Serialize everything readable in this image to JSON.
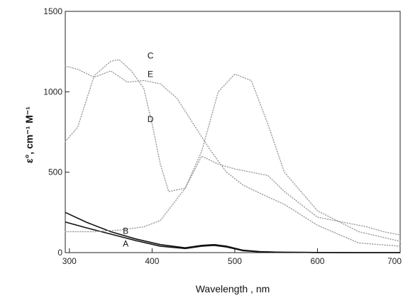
{
  "chart_data": {
    "type": "line",
    "title": "",
    "xlabel": "Wavelength , nm",
    "ylabel": "ε°, cm⁻¹ M⁻¹",
    "xlim": [
      295,
      700
    ],
    "ylim": [
      0,
      1500
    ],
    "xticks": [
      300,
      400,
      500,
      600,
      700
    ],
    "yticks": [
      0,
      500,
      1000,
      1500
    ],
    "grid": false,
    "legend": "none",
    "series": [
      {
        "name": "A",
        "style": "solid",
        "label_at": [
          368,
          55
        ],
        "x": [
          295,
          320,
          350,
          380,
          410,
          440,
          460,
          475,
          490,
          510,
          530,
          560,
          600,
          650,
          700
        ],
        "y": [
          190,
          155,
          115,
          75,
          40,
          25,
          40,
          45,
          35,
          12,
          5,
          2,
          1,
          0,
          0
        ]
      },
      {
        "name": "B",
        "style": "solid",
        "label_at": [
          368,
          135
        ],
        "x": [
          295,
          320,
          350,
          380,
          410,
          440,
          460,
          475,
          490,
          510,
          530,
          560,
          600,
          650,
          700
        ],
        "y": [
          250,
          190,
          130,
          85,
          50,
          30,
          45,
          50,
          40,
          15,
          6,
          2,
          1,
          0,
          0
        ]
      },
      {
        "name": "C",
        "style": "dotted",
        "label_at": [
          398,
          1225
        ],
        "x": [
          295,
          310,
          330,
          350,
          360,
          375,
          390,
          400,
          410,
          420,
          440,
          460,
          480,
          500,
          520,
          540,
          560,
          600,
          650,
          700
        ],
        "y": [
          690,
          780,
          1100,
          1190,
          1200,
          1130,
          1020,
          800,
          550,
          380,
          400,
          630,
          1000,
          1110,
          1070,
          800,
          500,
          260,
          130,
          70
        ]
      },
      {
        "name": "D",
        "style": "dotted",
        "label_at": [
          398,
          830
        ],
        "x": [
          295,
          310,
          330,
          350,
          370,
          390,
          410,
          430,
          450,
          470,
          490,
          510,
          530,
          560,
          600,
          650,
          700
        ],
        "y": [
          1160,
          1140,
          1090,
          1130,
          1060,
          1070,
          1050,
          960,
          800,
          640,
          500,
          420,
          370,
          300,
          170,
          60,
          40
        ]
      },
      {
        "name": "E",
        "style": "dotted",
        "label_at": [
          398,
          1110
        ],
        "x": [
          295,
          330,
          360,
          390,
          410,
          440,
          460,
          480,
          500,
          520,
          540,
          560,
          600,
          640,
          660,
          680,
          700
        ],
        "y": [
          130,
          130,
          140,
          160,
          200,
          400,
          600,
          550,
          520,
          500,
          480,
          380,
          220,
          180,
          160,
          130,
          110
        ]
      }
    ]
  }
}
